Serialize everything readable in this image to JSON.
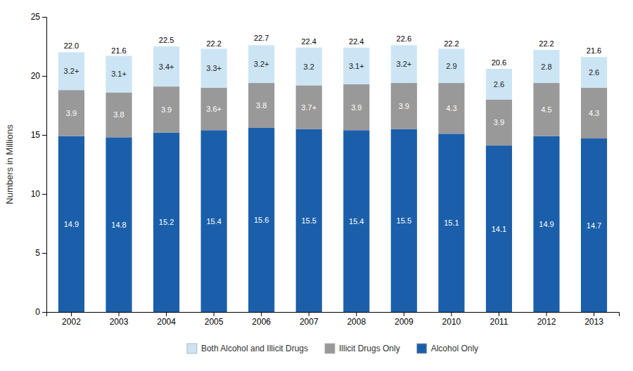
{
  "chart_data": {
    "type": "bar",
    "stacked": true,
    "data_labels": true,
    "grid": false,
    "legend": "bottom",
    "y_label": "Numbers in Millions",
    "categories": [
      "2002",
      "2003",
      "2004",
      "2005",
      "2006",
      "2007",
      "2008",
      "2009",
      "2010",
      "2011",
      "2012",
      "2013"
    ],
    "series": [
      {
        "name": "Alcohol Only",
        "color": "#1b5faa",
        "values": [
          14.9,
          14.8,
          15.2,
          15.4,
          15.6,
          15.5,
          15.4,
          15.5,
          15.1,
          14.1,
          14.9,
          14.7
        ]
      },
      {
        "name": "Illicit Drugs Only",
        "color": "#999999",
        "values": [
          3.9,
          3.8,
          3.9,
          3.6,
          3.8,
          3.7,
          3.9,
          3.9,
          4.3,
          3.9,
          4.5,
          4.3
        ],
        "value_labels": [
          "3.9",
          "3.8",
          "3.9",
          "3.6+",
          "3.8",
          "3.7+",
          "3.9",
          "3.9",
          "4.3",
          "3.9",
          "4.5",
          "4.3"
        ]
      },
      {
        "name": "Both Alcohol and Illicit Drugs",
        "color": "#cce5f5",
        "values": [
          3.2,
          3.1,
          3.4,
          3.3,
          3.2,
          3.2,
          3.1,
          3.2,
          2.9,
          2.6,
          2.8,
          2.6
        ],
        "value_labels": [
          "3.2+",
          "3.1+",
          "3.4+",
          "3.3+",
          "3.2+",
          "3.2",
          "3.1+",
          "3.2+",
          "2.9",
          "2.6",
          "2.8",
          "2.6"
        ]
      }
    ],
    "totals": {
      "values": [
        22.0,
        21.6,
        22.5,
        22.2,
        22.7,
        22.4,
        22.4,
        22.6,
        22.2,
        20.6,
        22.2,
        21.6
      ],
      "value_labels": [
        "22.0",
        "21.6",
        "22.5",
        "22.2",
        "22.7",
        "22.4",
        "22.4",
        "22.6",
        "22.2",
        "20.6",
        "22.2",
        "21.6"
      ]
    },
    "ylim": [
      0,
      25
    ],
    "yticks": [
      0,
      5,
      10,
      15,
      20,
      25
    ]
  }
}
